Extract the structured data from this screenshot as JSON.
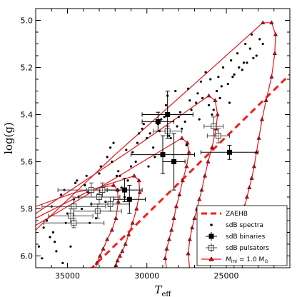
{
  "colors": {
    "track": "#e8141c",
    "zaehb": "#ff1a1a",
    "points": "#000000",
    "frame": "#000000"
  },
  "chart_data": {
    "type": "scatter",
    "title": "",
    "xlabel": "T",
    "xlabel_sub": "eff",
    "ylabel": "log(g)",
    "xlim": [
      37000,
      21000
    ],
    "ylim": [
      6.05,
      4.95
    ],
    "x_ticks": [
      35000,
      30000,
      25000
    ],
    "x_tick_labels": [
      "35000",
      "30000",
      "25000"
    ],
    "y_ticks": [
      5.0,
      5.2,
      5.4,
      5.6,
      5.8,
      6.0
    ],
    "y_tick_labels": [
      "5.0",
      "5.2",
      "5.4",
      "5.6",
      "5.8",
      "6.0"
    ],
    "grid": false,
    "legend_position": "lower-right",
    "legend": {
      "zaehb": "ZAEHB",
      "spectra": "sdB spectra",
      "binaries": "sdB binaries",
      "pulsators": "sdB pulsators",
      "models_prefix": "M",
      "models_sub": "ini",
      "models_suffix": " = 1.0 M",
      "models_sun": "⊙"
    },
    "zaehb": {
      "x": [
        33600,
        21000
      ],
      "y": [
        6.06,
        5.23
      ]
    },
    "sdb_spectra": {
      "x": [
        36800,
        36300,
        35900,
        35200,
        34600,
        33900,
        33100,
        32500,
        31800,
        31200,
        30600,
        29800,
        29100,
        28500,
        27800,
        27200,
        26500,
        25900,
        25300,
        24600,
        23900,
        23300,
        22700,
        36100,
        35400,
        34800,
        34100,
        33500,
        32900,
        32200,
        31600,
        30900,
        30200,
        29500,
        28800,
        28100,
        27500,
        26800,
        26100,
        25500,
        24800,
        24200,
        23500,
        22900,
        36500,
        35700,
        35100,
        34400,
        33700,
        33000,
        32300,
        31700,
        31000,
        30300,
        29600,
        28900,
        28200,
        27600,
        26900,
        26300,
        25600,
        24900,
        24300,
        23700,
        36600,
        35800,
        35000,
        34300,
        33600,
        32800,
        32100,
        31400,
        30700,
        30000,
        29300,
        28600,
        27900,
        27300,
        26600,
        25800,
        25200,
        24500,
        23800,
        23100,
        36000,
        35300,
        34500,
        33800,
        33200,
        32600,
        31900,
        31300,
        30500,
        29900,
        29200,
        28700,
        28000,
        27400,
        26700,
        26000,
        25400,
        24700,
        24000,
        23400
      ],
      "y": [
        5.96,
        5.85,
        5.9,
        5.72,
        5.76,
        5.7,
        5.74,
        5.58,
        5.64,
        5.68,
        5.52,
        5.48,
        5.42,
        5.5,
        5.46,
        5.38,
        5.33,
        5.4,
        5.28,
        5.24,
        5.18,
        5.16,
        5.1,
        5.92,
        5.74,
        5.96,
        5.8,
        5.78,
        5.62,
        5.6,
        5.71,
        5.56,
        5.44,
        5.58,
        5.36,
        5.45,
        5.53,
        5.31,
        5.36,
        5.24,
        5.35,
        5.2,
        5.12,
        5.08,
        5.88,
        5.98,
        5.86,
        5.68,
        5.73,
        5.65,
        5.54,
        5.66,
        5.62,
        5.46,
        5.54,
        5.41,
        5.3,
        5.43,
        5.35,
        5.22,
        5.3,
        5.27,
        5.14,
        5.18,
        6.01,
        5.94,
        5.82,
        5.75,
        5.86,
        5.71,
        5.52,
        5.75,
        5.6,
        5.5,
        5.44,
        5.49,
        5.39,
        5.34,
        5.26,
        5.38,
        5.2,
        5.23,
        5.1,
        5.15,
        5.79,
        6.03,
        5.69,
        5.66,
        5.84,
        5.77,
        5.66,
        5.55,
        5.48,
        5.62,
        5.47,
        5.32,
        5.41,
        5.29,
        5.42,
        5.25,
        5.33,
        5.17,
        5.21,
        5.06
      ]
    },
    "sdb_binaries": [
      {
        "x": 29300,
        "y": 5.43,
        "xerr": 1000,
        "yerr": 0.04
      },
      {
        "x": 28700,
        "y": 5.4,
        "xerr": 1600,
        "yerr": 0.1
      },
      {
        "x": 28300,
        "y": 5.6,
        "xerr": 700,
        "yerr": 0.12
      },
      {
        "x": 29000,
        "y": 5.57,
        "xerr": 2000,
        "yerr": 0.08
      },
      {
        "x": 31400,
        "y": 5.72,
        "xerr": 1100,
        "yerr": 0.05
      },
      {
        "x": 31100,
        "y": 5.76,
        "xerr": 1000,
        "yerr": 0.06
      },
      {
        "x": 24800,
        "y": 5.56,
        "xerr": 1800,
        "yerr": 0.03
      }
    ],
    "sdb_pulsators": [
      {
        "x": 34600,
        "y": 5.79,
        "xerr": 2000,
        "yerr": 0.04
      },
      {
        "x": 34800,
        "y": 5.83,
        "xerr": 1400,
        "yerr": 0.03
      },
      {
        "x": 34600,
        "y": 5.86,
        "xerr": 1900,
        "yerr": 0.02
      },
      {
        "x": 33500,
        "y": 5.72,
        "xerr": 2100,
        "yerr": 0.03
      },
      {
        "x": 33000,
        "y": 5.75,
        "xerr": 1300,
        "yerr": 0.03
      },
      {
        "x": 32300,
        "y": 5.78,
        "xerr": 1200,
        "yerr": 0.03
      },
      {
        "x": 33100,
        "y": 5.81,
        "xerr": 1500,
        "yerr": 0.03
      },
      {
        "x": 32800,
        "y": 5.72,
        "xerr": 1000,
        "yerr": 0.03
      },
      {
        "x": 28700,
        "y": 5.47,
        "xerr": 900,
        "yerr": 0.02
      },
      {
        "x": 25800,
        "y": 5.45,
        "xerr": 600,
        "yerr": 0.04
      },
      {
        "x": 25500,
        "y": 5.49,
        "xerr": 700,
        "yerr": 0.03
      }
    ],
    "tracks": [
      {
        "x": [
          22700,
          22150,
          21900,
          21950,
          22150,
          22500,
          22750,
          22950,
          23100,
          23250,
          23400,
          23550,
          23700,
          23850,
          24050,
          24300,
          24500,
          24600,
          24500
        ],
        "y": [
          5.01,
          5.01,
          5.06,
          5.14,
          5.24,
          5.34,
          5.42,
          5.5,
          5.56,
          5.62,
          5.67,
          5.71,
          5.75,
          5.79,
          5.84,
          5.88,
          5.93,
          5.98,
          6.06
        ]
      },
      {
        "x": [
          26100,
          25700,
          25550,
          25650,
          25900,
          26150,
          26350,
          26550,
          26700,
          26850,
          27000,
          27150,
          27300,
          27400,
          27300
        ],
        "y": [
          5.32,
          5.34,
          5.4,
          5.46,
          5.54,
          5.6,
          5.66,
          5.72,
          5.76,
          5.8,
          5.84,
          5.88,
          5.93,
          5.99,
          6.06
        ]
      },
      {
        "x": [
          27800,
          27450,
          27350,
          27500,
          27750,
          27950,
          28150,
          28300,
          28450,
          28600,
          28750,
          28850,
          28750
        ],
        "y": [
          5.5,
          5.52,
          5.56,
          5.62,
          5.68,
          5.74,
          5.79,
          5.84,
          5.89,
          5.93,
          5.97,
          6.01,
          6.06
        ]
      },
      {
        "x": [
          30800,
          30500,
          30450,
          30650,
          30900,
          31150,
          31350,
          31550,
          31700,
          31850,
          31950
        ],
        "y": [
          5.66,
          5.68,
          5.73,
          5.8,
          5.86,
          5.91,
          5.95,
          5.98,
          6.0,
          6.02,
          6.04
        ]
      },
      {
        "x": [
          32100,
          31850,
          31800,
          31950,
          32200,
          32500,
          32750,
          32950,
          33150,
          33250
        ],
        "y": [
          5.7,
          5.72,
          5.77,
          5.84,
          5.89,
          5.93,
          5.97,
          6.0,
          6.03,
          6.06
        ]
      }
    ],
    "track_tails": [
      {
        "x": [
          37000,
          32000,
          27000,
          22700
        ],
        "y": [
          5.89,
          5.57,
          5.27,
          5.01
        ]
      },
      {
        "x": [
          37000,
          31000,
          26100
        ],
        "y": [
          5.82,
          5.55,
          5.32
        ]
      },
      {
        "x": [
          37000,
          32000,
          27800
        ],
        "y": [
          5.87,
          5.67,
          5.5
        ]
      },
      {
        "x": [
          37000,
          33500,
          30800
        ],
        "y": [
          5.84,
          5.72,
          5.66
        ]
      },
      {
        "x": [
          37000,
          34500,
          32100
        ],
        "y": [
          5.79,
          5.73,
          5.7
        ]
      }
    ]
  }
}
